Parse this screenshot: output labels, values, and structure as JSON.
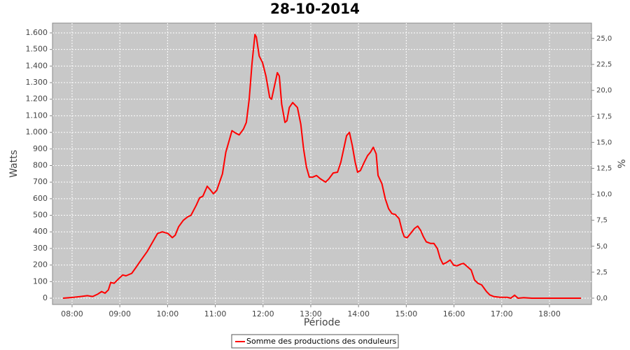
{
  "chart_data": {
    "type": "line",
    "title": "28-10-2014",
    "x_label": "Période",
    "y_label": "Watts",
    "y2_label": "%",
    "x": [
      7.81,
      8.03,
      8.18,
      8.32,
      8.43,
      8.54,
      8.62,
      8.69,
      8.76,
      8.81,
      8.88,
      8.95,
      9.06,
      9.13,
      9.25,
      9.35,
      9.42,
      9.57,
      9.69,
      9.79,
      9.89,
      10.01,
      10.1,
      10.16,
      10.23,
      10.33,
      10.42,
      10.49,
      10.6,
      10.67,
      10.74,
      10.83,
      10.89,
      10.96,
      11.03,
      11.15,
      11.22,
      11.3,
      11.35,
      11.43,
      11.5,
      11.59,
      11.65,
      11.71,
      11.77,
      11.83,
      11.86,
      11.92,
      11.99,
      12.06,
      12.14,
      12.18,
      12.24,
      12.3,
      12.34,
      12.39,
      12.46,
      12.5,
      12.55,
      12.62,
      12.72,
      12.79,
      12.85,
      12.91,
      12.97,
      13.04,
      13.12,
      13.2,
      13.31,
      13.38,
      13.47,
      13.56,
      13.63,
      13.69,
      13.75,
      13.81,
      13.87,
      13.93,
      13.98,
      14.04,
      14.12,
      14.19,
      14.25,
      14.31,
      14.37,
      14.41,
      14.49,
      14.56,
      14.63,
      14.7,
      14.77,
      14.85,
      14.92,
      14.96,
      15.02,
      15.09,
      15.17,
      15.24,
      15.3,
      15.36,
      15.42,
      15.51,
      15.58,
      15.65,
      15.71,
      15.77,
      15.84,
      15.92,
      15.99,
      16.06,
      16.14,
      16.2,
      16.28,
      16.36,
      16.43,
      16.5,
      16.58,
      16.68,
      16.75,
      16.83,
      16.97,
      17.12,
      17.19,
      17.27,
      17.34,
      17.46,
      17.63,
      18.66
    ],
    "series": [
      {
        "name": "Somme des productions des onduleurs",
        "color": "#ff0000",
        "values": [
          0,
          5,
          10,
          15,
          10,
          25,
          40,
          30,
          50,
          95,
          90,
          110,
          140,
          135,
          150,
          190,
          220,
          280,
          340,
          390,
          400,
          390,
          365,
          380,
          430,
          470,
          490,
          500,
          560,
          605,
          615,
          675,
          655,
          630,
          650,
          750,
          880,
          960,
          1010,
          995,
          985,
          1020,
          1060,
          1200,
          1420,
          1590,
          1575,
          1460,
          1420,
          1340,
          1210,
          1200,
          1280,
          1360,
          1340,
          1170,
          1060,
          1070,
          1150,
          1180,
          1150,
          1050,
          900,
          790,
          730,
          730,
          740,
          720,
          700,
          720,
          755,
          760,
          820,
          900,
          980,
          1000,
          920,
          820,
          760,
          770,
          820,
          860,
          880,
          910,
          870,
          740,
          690,
          600,
          540,
          510,
          505,
          480,
          400,
          370,
          365,
          390,
          420,
          435,
          410,
          370,
          340,
          330,
          330,
          300,
          240,
          205,
          215,
          230,
          200,
          195,
          205,
          210,
          190,
          170,
          110,
          90,
          80,
          40,
          20,
          10,
          5,
          5,
          0,
          18,
          0,
          3,
          0,
          0
        ]
      }
    ],
    "xlim": [
      7.59,
      18.88
    ],
    "xticks": [
      {
        "value": 8,
        "label": "08:00"
      },
      {
        "value": 9,
        "label": "09:00"
      },
      {
        "value": 10,
        "label": "10:00"
      },
      {
        "value": 11,
        "label": "11:00"
      },
      {
        "value": 12,
        "label": "12:00"
      },
      {
        "value": 13,
        "label": "13:00"
      },
      {
        "value": 14,
        "label": "14:00"
      },
      {
        "value": 15,
        "label": "15:00"
      },
      {
        "value": 16,
        "label": "16:00"
      },
      {
        "value": 17,
        "label": "17:00"
      },
      {
        "value": 18,
        "label": "18:00"
      }
    ],
    "ylim": [
      -38,
      1659
    ],
    "yticks": [
      0,
      100,
      200,
      300,
      400,
      500,
      600,
      700,
      800,
      900,
      {
        "value": 1000,
        "label": "1.000"
      },
      {
        "value": 1100,
        "label": "1.100"
      },
      {
        "value": 1200,
        "label": "1.200"
      },
      {
        "value": 1300,
        "label": "1.300"
      },
      {
        "value": 1400,
        "label": "1.400"
      },
      {
        "value": 1500,
        "label": "1.500"
      },
      {
        "value": 1600,
        "label": "1.600"
      }
    ],
    "y2lim": [
      -0.61,
      26.48
    ],
    "y2ticks": [
      {
        "value": 0,
        "label": "0,0"
      },
      {
        "value": 2.5,
        "label": "2,5"
      },
      {
        "value": 5,
        "label": "5,0"
      },
      {
        "value": 7.5,
        "label": "7,5"
      },
      {
        "value": 10,
        "label": "10,0"
      },
      {
        "value": 12.5,
        "label": "12,5"
      },
      {
        "value": 15,
        "label": "15,0"
      },
      {
        "value": 17.5,
        "label": "17,5"
      },
      {
        "value": 20,
        "label": "20,0"
      },
      {
        "value": 22.5,
        "label": "22,5"
      },
      {
        "value": 25,
        "label": "25,0"
      }
    ],
    "grid": true,
    "background": "#c8c8c8"
  }
}
